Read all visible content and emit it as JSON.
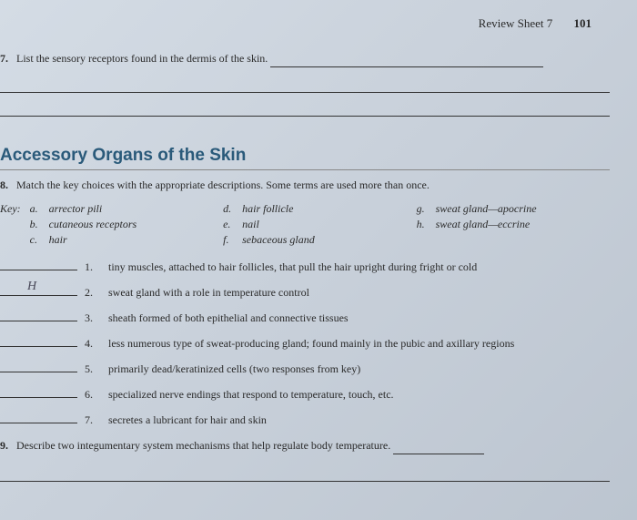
{
  "header": {
    "sheet_label": "Review Sheet 7",
    "page_num": "101"
  },
  "q7": {
    "num": "7.",
    "text": "List the sensory receptors found in the dermis of the skin."
  },
  "section_title": "Accessory Organs of the Skin",
  "q8": {
    "num": "8.",
    "text": "Match the key choices with the appropriate descriptions. Some terms are used more than once."
  },
  "key_label": "Key:",
  "key_items": {
    "a": {
      "letter": "a.",
      "text": "arrector pili"
    },
    "b": {
      "letter": "b.",
      "text": "cutaneous receptors"
    },
    "c": {
      "letter": "c.",
      "text": "hair"
    },
    "d": {
      "letter": "d.",
      "text": "hair follicle"
    },
    "e": {
      "letter": "e.",
      "text": "nail"
    },
    "f": {
      "letter": "f.",
      "text": "sebaceous gland"
    },
    "g": {
      "letter": "g.",
      "text": "sweat gland—apocrine"
    },
    "h": {
      "letter": "h.",
      "text": "sweat gland—eccrine"
    }
  },
  "matches": [
    {
      "num": "1.",
      "text": "tiny muscles, attached to hair follicles, that pull the hair upright during fright or cold",
      "answer": ""
    },
    {
      "num": "2.",
      "text": "sweat gland with a role in temperature control",
      "answer": "H"
    },
    {
      "num": "3.",
      "text": "sheath formed of both epithelial and connective tissues",
      "answer": ""
    },
    {
      "num": "4.",
      "text": "less numerous type of sweat-producing gland; found mainly in the pubic and axillary regions",
      "answer": ""
    },
    {
      "num": "5.",
      "text": "primarily dead/keratinized cells (two responses from key)",
      "answer": ""
    },
    {
      "num": "6.",
      "text": "specialized nerve endings that respond to temperature, touch, etc.",
      "answer": ""
    },
    {
      "num": "7.",
      "text": "secretes a lubricant for hair and skin",
      "answer": ""
    }
  ],
  "q9": {
    "num": "9.",
    "text": "Describe two integumentary system mechanisms that help regulate body temperature."
  },
  "colors": {
    "section_title": "#2a5a7a",
    "text": "#2a2a2a",
    "background_start": "#d4dce5",
    "background_end": "#bcc5d0"
  }
}
